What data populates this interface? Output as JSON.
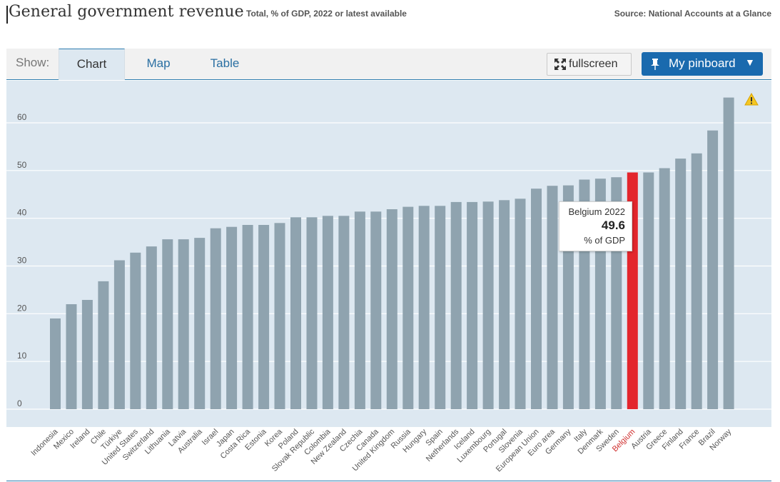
{
  "header": {
    "title": "General government revenue",
    "subtitle": "Total, % of GDP, 2022 or latest available",
    "source": "Source: National Accounts at a Glance"
  },
  "toolbar": {
    "show_label": "Show:",
    "tabs": [
      {
        "label": "Chart",
        "active": true
      },
      {
        "label": "Map",
        "active": false
      },
      {
        "label": "Table",
        "active": false
      }
    ],
    "fullscreen_label": "fullscreen",
    "pinboard_label": "My pinboard",
    "pinboard_arrow": "▼"
  },
  "tooltip": {
    "heading": "Belgium 2022",
    "value": "49.6",
    "unit": "% of GDP"
  },
  "colors": {
    "bar": "#8fa3af",
    "highlight": "#e3262d",
    "highlight_label": "#d0302f",
    "plot_bg": "#dde8f1",
    "grid": "#ffffff",
    "accent": "#1a6aae"
  },
  "icons": [
    "fullscreen-icon",
    "pin-icon",
    "warning-icon"
  ],
  "chart_data": {
    "type": "bar",
    "ylim": [
      0,
      65
    ],
    "yticks": [
      0,
      10,
      20,
      30,
      40,
      50,
      60
    ],
    "grid": true,
    "highlight": "Belgium",
    "categories": [
      "Indonesia",
      "Mexico",
      "Ireland",
      "Chile",
      "Türkiye",
      "United States",
      "Switzerland",
      "Lithuania",
      "Latvia",
      "Australia",
      "Israel",
      "Japan",
      "Costa Rica",
      "Estonia",
      "Korea",
      "Poland",
      "Slovak Republic",
      "Colombia",
      "New Zealand",
      "Czechia",
      "Canada",
      "United Kingdom",
      "Russia",
      "Hungary",
      "Spain",
      "Netherlands",
      "Iceland",
      "Luxembourg",
      "Portugal",
      "Slovenia",
      "European Union",
      "Euro area",
      "Germany",
      "Italy",
      "Denmark",
      "Sweden",
      "Belgium",
      "Austria",
      "Greece",
      "Finland",
      "France",
      "Brazil",
      "Norway"
    ],
    "values": [
      19.0,
      22.0,
      22.9,
      26.8,
      31.2,
      32.8,
      34.1,
      35.6,
      35.6,
      35.9,
      37.9,
      38.2,
      38.6,
      38.6,
      39.0,
      40.2,
      40.2,
      40.5,
      40.5,
      41.4,
      41.4,
      41.9,
      42.4,
      42.6,
      42.6,
      43.4,
      43.4,
      43.5,
      43.8,
      44.1,
      46.2,
      46.8,
      46.9,
      48.1,
      48.3,
      48.6,
      49.6,
      49.6,
      50.5,
      52.5,
      53.6,
      58.4,
      65.3
    ]
  }
}
